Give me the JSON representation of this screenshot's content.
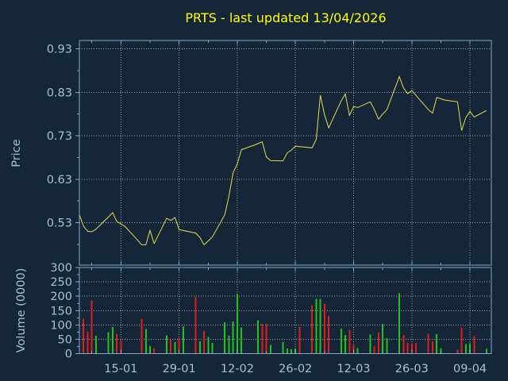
{
  "title": {
    "text": "PRTS - last updated 13/04/2026"
  },
  "colors": {
    "background": "#142638",
    "spine": "#7fa5c9",
    "tick_label": "#a3c1dc",
    "grid": "#c9d2da",
    "title": "#ffff00",
    "price_line": "#e6dc4e",
    "volume_up": "#1ec41e",
    "volume_down": "#e01e1e"
  },
  "price_plot": {
    "ylabel": "Price",
    "yticks": [
      0.53,
      0.63,
      0.73,
      0.83,
      0.93
    ],
    "ylim": [
      0.432,
      0.949
    ],
    "grid": "dotted"
  },
  "volume_plot": {
    "ylabel": "Volume (0000)",
    "yticks": [
      0,
      50,
      100,
      150,
      200,
      250,
      300
    ],
    "ylim": [
      0,
      300
    ],
    "grid": "dotted"
  },
  "x_axis": {
    "major_labels": [
      "15-01",
      "29-01",
      "12-02",
      "26-02",
      "12-03",
      "26-03",
      "09-04"
    ],
    "major_days": [
      10,
      24,
      38,
      52,
      66,
      80,
      94
    ],
    "minor_days": [
      3,
      17,
      31,
      45,
      59,
      73,
      87
    ],
    "xlim_days": [
      0,
      99.2
    ]
  },
  "chart_data": {
    "type": "line+bar",
    "title": "PRTS - last updated 13/04/2026",
    "x_unit": "trading days 05-01-2026 to 13-04-2026 (DD-MM)",
    "dates": [
      "05-01",
      "06-01",
      "07-01",
      "08-01",
      "09-01",
      "12-01",
      "13-01",
      "14-01",
      "15-01",
      "16-01",
      "19-01",
      "20-01",
      "21-01",
      "22-01",
      "23-01",
      "26-01",
      "27-01",
      "28-01",
      "29-01",
      "30-01",
      "02-02",
      "03-02",
      "04-02",
      "05-02",
      "06-02",
      "09-02",
      "10-02",
      "11-02",
      "12-02",
      "13-02",
      "16-02",
      "17-02",
      "18-02",
      "19-02",
      "20-02",
      "23-02",
      "24-02",
      "25-02",
      "26-02",
      "27-02",
      "02-03",
      "03-03",
      "04-03",
      "05-03",
      "06-03",
      "09-03",
      "10-03",
      "11-03",
      "12-03",
      "13-03",
      "16-03",
      "17-03",
      "18-03",
      "19-03",
      "20-03",
      "23-03",
      "24-03",
      "25-03",
      "26-03",
      "27-03",
      "30-03",
      "31-03",
      "01-04",
      "02-04",
      "03-04",
      "06-04",
      "07-04",
      "08-04",
      "09-04",
      "10-04",
      "13-04"
    ],
    "day_offsets": [
      0,
      1,
      2,
      3,
      4,
      7,
      8,
      9,
      10,
      11,
      14,
      15,
      16,
      17,
      18,
      21,
      22,
      23,
      24,
      25,
      28,
      29,
      30,
      31,
      32,
      35,
      36,
      37,
      38,
      39,
      42,
      43,
      44,
      45,
      46,
      49,
      50,
      51,
      52,
      53,
      56,
      57,
      58,
      59,
      60,
      63,
      64,
      65,
      66,
      67,
      70,
      71,
      72,
      73,
      74,
      77,
      78,
      79,
      80,
      81,
      84,
      85,
      86,
      87,
      88,
      91,
      92,
      93,
      94,
      95,
      98
    ],
    "price": [
      0.548,
      0.522,
      0.51,
      0.509,
      0.515,
      0.543,
      0.553,
      0.533,
      0.527,
      0.521,
      0.49,
      0.479,
      0.479,
      0.512,
      0.482,
      0.54,
      0.535,
      0.542,
      0.514,
      0.512,
      0.506,
      0.496,
      0.479,
      0.488,
      0.497,
      0.548,
      0.592,
      0.645,
      0.665,
      0.698,
      0.708,
      0.712,
      0.716,
      0.681,
      0.673,
      0.672,
      0.69,
      0.697,
      0.706,
      0.705,
      0.702,
      0.722,
      0.823,
      0.778,
      0.748,
      0.81,
      0.826,
      0.777,
      0.797,
      0.795,
      0.808,
      0.79,
      0.768,
      0.78,
      0.79,
      0.866,
      0.84,
      0.827,
      0.834,
      0.823,
      0.79,
      0.782,
      0.818,
      0.815,
      0.812,
      0.808,
      0.742,
      0.772,
      0.786,
      0.773,
      0.788
    ],
    "volume": [
      null,
      122,
      76,
      185,
      62,
      75,
      93,
      70,
      46,
      null,
      null,
      122,
      86,
      27,
      18,
      64,
      49,
      40,
      55,
      95,
      198,
      43,
      81,
      58,
      38,
      109,
      63,
      113,
      207,
      91,
      null,
      116,
      104,
      104,
      31,
      40,
      18,
      16,
      18,
      93,
      169,
      191,
      191,
      173,
      131,
      88,
      66,
      84,
      31,
      20,
      67,
      27,
      73,
      104,
      54,
      210,
      66,
      38,
      37,
      38,
      70,
      43,
      68,
      20,
      null,
      15,
      91,
      34,
      36,
      61,
      17
    ],
    "volume_colors": [
      null,
      "down",
      "down",
      "down",
      "up",
      "up",
      "up",
      "down",
      "down",
      null,
      null,
      "down",
      "up",
      "up",
      "down",
      "up",
      "down",
      "up",
      "down",
      "up",
      "down",
      "up",
      "down",
      "up",
      "up",
      "up",
      "up",
      "up",
      "up",
      "up",
      null,
      "up",
      "down",
      "down",
      "up",
      "up",
      "up",
      "up",
      "up",
      "down",
      "down",
      "up",
      "up",
      "down",
      "down",
      "up",
      "up",
      "down",
      "down",
      "up",
      "up",
      "down",
      "down",
      "up",
      "up",
      "up",
      "down",
      "down",
      "down",
      "down",
      "down",
      "down",
      "up",
      "up",
      null,
      "down",
      "down",
      "up",
      "up",
      "down",
      "up"
    ]
  }
}
